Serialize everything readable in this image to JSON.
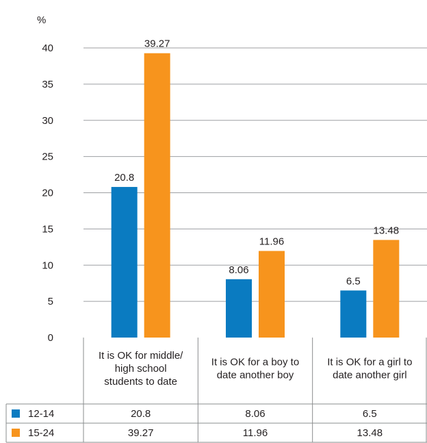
{
  "chart_data": {
    "type": "bar",
    "ylabel": "%",
    "ylim": [
      0,
      40
    ],
    "yticks": [
      0,
      5,
      10,
      15,
      20,
      25,
      30,
      35,
      40
    ],
    "grid": true,
    "legend": "data table below chart",
    "categories": [
      [
        "It is OK for middle/",
        "high school",
        "students to date"
      ],
      [
        "It is OK for a boy to",
        "date another boy"
      ],
      [
        "It is OK for a girl to",
        "date another girl"
      ]
    ],
    "series": [
      {
        "name": "12-14",
        "color": "#0a7bc1",
        "values": [
          20.8,
          8.06,
          6.5
        ],
        "labels": [
          "20.8",
          "8.06",
          "6.5"
        ]
      },
      {
        "name": "15-24",
        "color": "#f7941d",
        "values": [
          39.27,
          11.96,
          13.48
        ],
        "labels": [
          "39.27",
          "11.96",
          "13.48"
        ]
      }
    ]
  }
}
